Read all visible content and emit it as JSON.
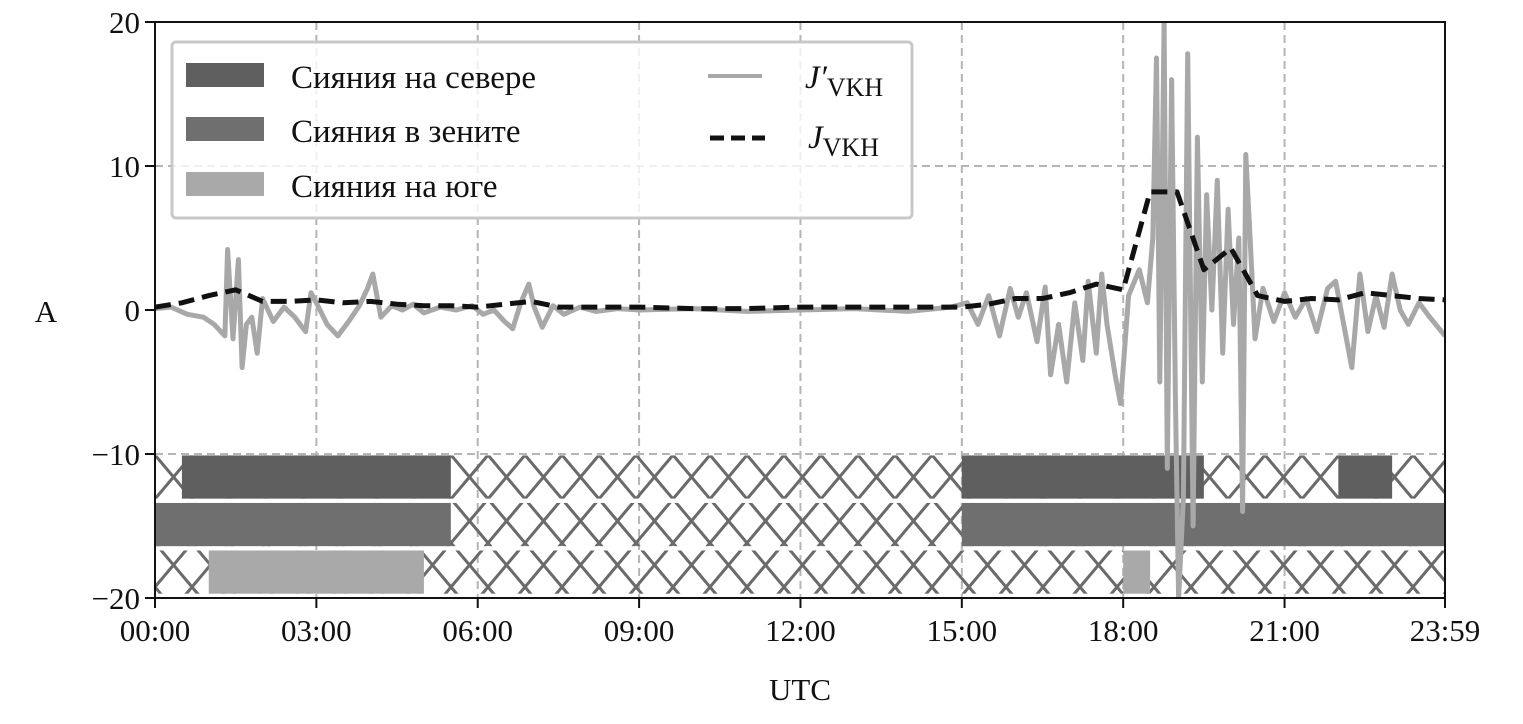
{
  "chart_data": {
    "type": "line",
    "xlabel": "UTC",
    "ylabel": "A",
    "xlim_hours": [
      0,
      23.983
    ],
    "ylim": [
      -20,
      20
    ],
    "x_ticks": [
      {
        "h": 0,
        "label": "00:00"
      },
      {
        "h": 3,
        "label": "03:00"
      },
      {
        "h": 6,
        "label": "06:00"
      },
      {
        "h": 9,
        "label": "09:00"
      },
      {
        "h": 12,
        "label": "12:00"
      },
      {
        "h": 15,
        "label": "15:00"
      },
      {
        "h": 18,
        "label": "18:00"
      },
      {
        "h": 21,
        "label": "21:00"
      },
      {
        "h": 23.983,
        "label": "23:59"
      }
    ],
    "y_ticks": [
      {
        "v": 20,
        "label": "20"
      },
      {
        "v": 10,
        "label": "10"
      },
      {
        "v": 0,
        "label": "0"
      },
      {
        "v": -10,
        "label": "−10"
      },
      {
        "v": -20,
        "label": "−20"
      }
    ],
    "grid": true,
    "legend_position": "top-left",
    "legend": {
      "north": "Сияния на севере",
      "zenith": "Сияния в зените",
      "south": "Сияния на юге",
      "jprime_main": "J′",
      "jprime_sub": "VKH",
      "j_main": "J",
      "j_sub": "VKH"
    },
    "aurora_bands": [
      {
        "name": "Сияния на севере",
        "color": "#5f5f5f",
        "y_range": [
          -13.1,
          -10.1
        ],
        "intervals_hours": [
          [
            0.5,
            5.5
          ],
          [
            15.0,
            19.5
          ],
          [
            22.0,
            23.0
          ]
        ]
      },
      {
        "name": "Сияния в зените",
        "color": "#6f6f6f",
        "y_range": [
          -16.4,
          -13.4
        ],
        "intervals_hours": [
          [
            0.0,
            5.5
          ],
          [
            15.0,
            23.983
          ]
        ]
      },
      {
        "name": "Сияния на юге",
        "color": "#a9a9a9",
        "y_range": [
          -19.7,
          -16.7
        ],
        "intervals_hours": [
          [
            1.0,
            5.0
          ],
          [
            18.0,
            18.5
          ]
        ]
      }
    ],
    "series": [
      {
        "name": "J′VKH",
        "color": "#a8a8a8",
        "style": "solid",
        "points": [
          [
            0,
            0.1
          ],
          [
            0.3,
            0.2
          ],
          [
            0.6,
            -0.3
          ],
          [
            0.9,
            -0.5
          ],
          [
            1.1,
            -1
          ],
          [
            1.3,
            -1.8
          ],
          [
            1.35,
            4.2
          ],
          [
            1.45,
            -2
          ],
          [
            1.55,
            3.5
          ],
          [
            1.62,
            -4
          ],
          [
            1.7,
            -1
          ],
          [
            1.8,
            -0.5
          ],
          [
            1.9,
            -3
          ],
          [
            2.0,
            0.8
          ],
          [
            2.2,
            -0.8
          ],
          [
            2.4,
            0.2
          ],
          [
            2.6,
            -0.5
          ],
          [
            2.8,
            -1.5
          ],
          [
            2.9,
            1.2
          ],
          [
            3.0,
            0.5
          ],
          [
            3.2,
            -1
          ],
          [
            3.4,
            -1.8
          ],
          [
            3.6,
            -0.8
          ],
          [
            3.8,
            0.3
          ],
          [
            3.95,
            1.5
          ],
          [
            4.05,
            2.5
          ],
          [
            4.2,
            -0.5
          ],
          [
            4.4,
            0.3
          ],
          [
            4.6,
            0
          ],
          [
            4.8,
            0.4
          ],
          [
            5.0,
            -0.2
          ],
          [
            5.3,
            0.2
          ],
          [
            5.6,
            0
          ],
          [
            5.9,
            0.3
          ],
          [
            6.1,
            -0.3
          ],
          [
            6.3,
            0
          ],
          [
            6.5,
            -0.8
          ],
          [
            6.65,
            -1.3
          ],
          [
            6.8,
            0.5
          ],
          [
            6.95,
            1.8
          ],
          [
            7.05,
            0.2
          ],
          [
            7.2,
            -1.2
          ],
          [
            7.4,
            0.3
          ],
          [
            7.6,
            -0.3
          ],
          [
            7.9,
            0.2
          ],
          [
            8.2,
            -0.1
          ],
          [
            8.6,
            0.1
          ],
          [
            9,
            0
          ],
          [
            10,
            0.1
          ],
          [
            11,
            -0.1
          ],
          [
            12,
            0
          ],
          [
            13,
            0.1
          ],
          [
            14,
            -0.1
          ],
          [
            14.8,
            0.2
          ],
          [
            15.1,
            0.5
          ],
          [
            15.3,
            -1
          ],
          [
            15.5,
            1
          ],
          [
            15.7,
            -1.8
          ],
          [
            15.9,
            1.5
          ],
          [
            16.05,
            -0.5
          ],
          [
            16.2,
            1.2
          ],
          [
            16.4,
            -2.2
          ],
          [
            16.55,
            1.6
          ],
          [
            16.65,
            -4.5
          ],
          [
            16.8,
            -1
          ],
          [
            16.95,
            -5
          ],
          [
            17.1,
            0.5
          ],
          [
            17.25,
            -3.5
          ],
          [
            17.35,
            2
          ],
          [
            17.5,
            -3
          ],
          [
            17.6,
            2.5
          ],
          [
            17.7,
            -1
          ],
          [
            17.85,
            -4.5
          ],
          [
            17.95,
            -6.5
          ],
          [
            18.1,
            1
          ],
          [
            18.3,
            2.8
          ],
          [
            18.45,
            0.5
          ],
          [
            18.55,
            5
          ],
          [
            18.62,
            17.5
          ],
          [
            18.68,
            -5
          ],
          [
            18.76,
            20
          ],
          [
            18.82,
            -11
          ],
          [
            18.9,
            16
          ],
          [
            18.97,
            -6
          ],
          [
            19.03,
            -20
          ],
          [
            19.12,
            -13
          ],
          [
            19.2,
            17.8
          ],
          [
            19.3,
            -15
          ],
          [
            19.38,
            12
          ],
          [
            19.47,
            -5
          ],
          [
            19.55,
            8
          ],
          [
            19.65,
            0
          ],
          [
            19.75,
            9
          ],
          [
            19.85,
            -3
          ],
          [
            19.95,
            7
          ],
          [
            20.05,
            -1
          ],
          [
            20.15,
            5
          ],
          [
            20.22,
            -14
          ],
          [
            20.28,
            10.8
          ],
          [
            20.36,
            5
          ],
          [
            20.45,
            -2
          ],
          [
            20.6,
            1.5
          ],
          [
            20.8,
            -0.8
          ],
          [
            21.0,
            1.2
          ],
          [
            21.2,
            -0.5
          ],
          [
            21.4,
            0.8
          ],
          [
            21.6,
            -1.5
          ],
          [
            21.8,
            1.5
          ],
          [
            21.95,
            2
          ],
          [
            22.1,
            -1
          ],
          [
            22.25,
            -4
          ],
          [
            22.4,
            2.5
          ],
          [
            22.55,
            -1.5
          ],
          [
            22.7,
            1
          ],
          [
            22.85,
            -1.2
          ],
          [
            23.0,
            2.5
          ],
          [
            23.15,
            0
          ],
          [
            23.3,
            -1
          ],
          [
            23.5,
            0.5
          ],
          [
            23.7,
            -0.5
          ],
          [
            23.983,
            -1.8
          ]
        ]
      },
      {
        "name": "JVKH",
        "color": "#111111",
        "style": "dashed",
        "points": [
          [
            0,
            0.2
          ],
          [
            0.5,
            0.5
          ],
          [
            1,
            1.0
          ],
          [
            1.5,
            1.4
          ],
          [
            2,
            0.6
          ],
          [
            2.5,
            0.6
          ],
          [
            3,
            0.7
          ],
          [
            3.5,
            0.5
          ],
          [
            4,
            0.6
          ],
          [
            4.5,
            0.4
          ],
          [
            5,
            0.3
          ],
          [
            5.5,
            0.3
          ],
          [
            6,
            0.2
          ],
          [
            6.5,
            0.4
          ],
          [
            7,
            0.6
          ],
          [
            7.5,
            0.2
          ],
          [
            8,
            0.2
          ],
          [
            9,
            0.2
          ],
          [
            10,
            0.1
          ],
          [
            11,
            0.1
          ],
          [
            12,
            0.2
          ],
          [
            13,
            0.2
          ],
          [
            14,
            0.2
          ],
          [
            15,
            0.2
          ],
          [
            15.5,
            0.4
          ],
          [
            16,
            0.8
          ],
          [
            16.5,
            0.8
          ],
          [
            17,
            1.2
          ],
          [
            17.5,
            1.8
          ],
          [
            18,
            1.4
          ],
          [
            18.5,
            8.2
          ],
          [
            19,
            8.2
          ],
          [
            19.5,
            2.8
          ],
          [
            20,
            4.3
          ],
          [
            20.5,
            1.0
          ],
          [
            21,
            0.6
          ],
          [
            21.5,
            0.8
          ],
          [
            22,
            0.7
          ],
          [
            22.5,
            1.2
          ],
          [
            23,
            1.0
          ],
          [
            23.5,
            0.8
          ],
          [
            23.983,
            0.7
          ]
        ]
      }
    ]
  }
}
